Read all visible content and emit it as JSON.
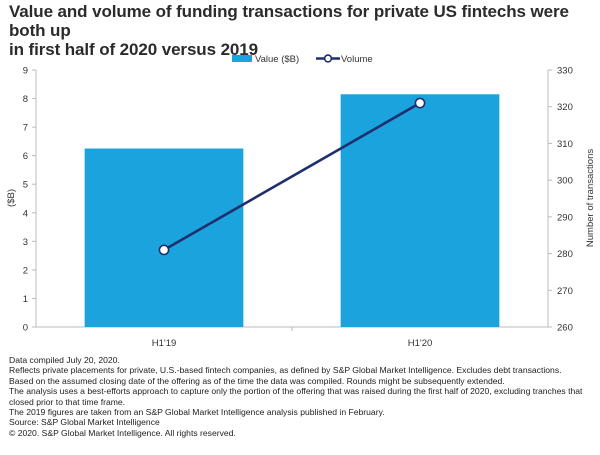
{
  "title_lines": [
    "Value and volume of funding transactions for private US fintechs were both up",
    "in first half of 2020 versus 2019"
  ],
  "chart_data": {
    "type": "bar",
    "categories": [
      "H1'19",
      "H1'20"
    ],
    "series": [
      {
        "name": "Value ($B)",
        "type": "bar",
        "axis": "left",
        "values": [
          6.25,
          8.15
        ],
        "color": "#1aa3dc"
      },
      {
        "name": "Volume",
        "type": "line",
        "axis": "right",
        "values": [
          281,
          321
        ],
        "color": "#1f2f6e"
      }
    ],
    "ylabel": "($B)",
    "ylim": [
      0,
      9
    ],
    "yticks": [
      "0",
      "1",
      "2",
      "3",
      "4",
      "5",
      "6",
      "7",
      "8",
      "9"
    ],
    "y2label": "Number of transactions",
    "y2lim": [
      260,
      330
    ],
    "y2ticks": [
      "260",
      "270",
      "280",
      "290",
      "300",
      "310",
      "320",
      "330"
    ],
    "legend_position": "top-center",
    "grid": false
  },
  "footnotes": [
    "Data compiled July 20, 2020.",
    "Reflects private placements for private, U.S.-based fintech companies, as defined by S&P Global Market Intelligence. Excludes debt transactions.",
    "Based on the assumed closing date of the offering as of the time the data was compiled. Rounds might be subsequently extended.",
    "The analysis uses a best-efforts approach to capture only the portion of the offering that was raised during the first half of 2020, excluding tranches that closed prior to that time frame.",
    "The 2019 figures are taken from an S&P Global Market Intelligence analysis published in February.",
    "Source: S&P Global Market Intelligence",
    "© 2020. S&P Global Market Intelligence. All rights reserved."
  ]
}
